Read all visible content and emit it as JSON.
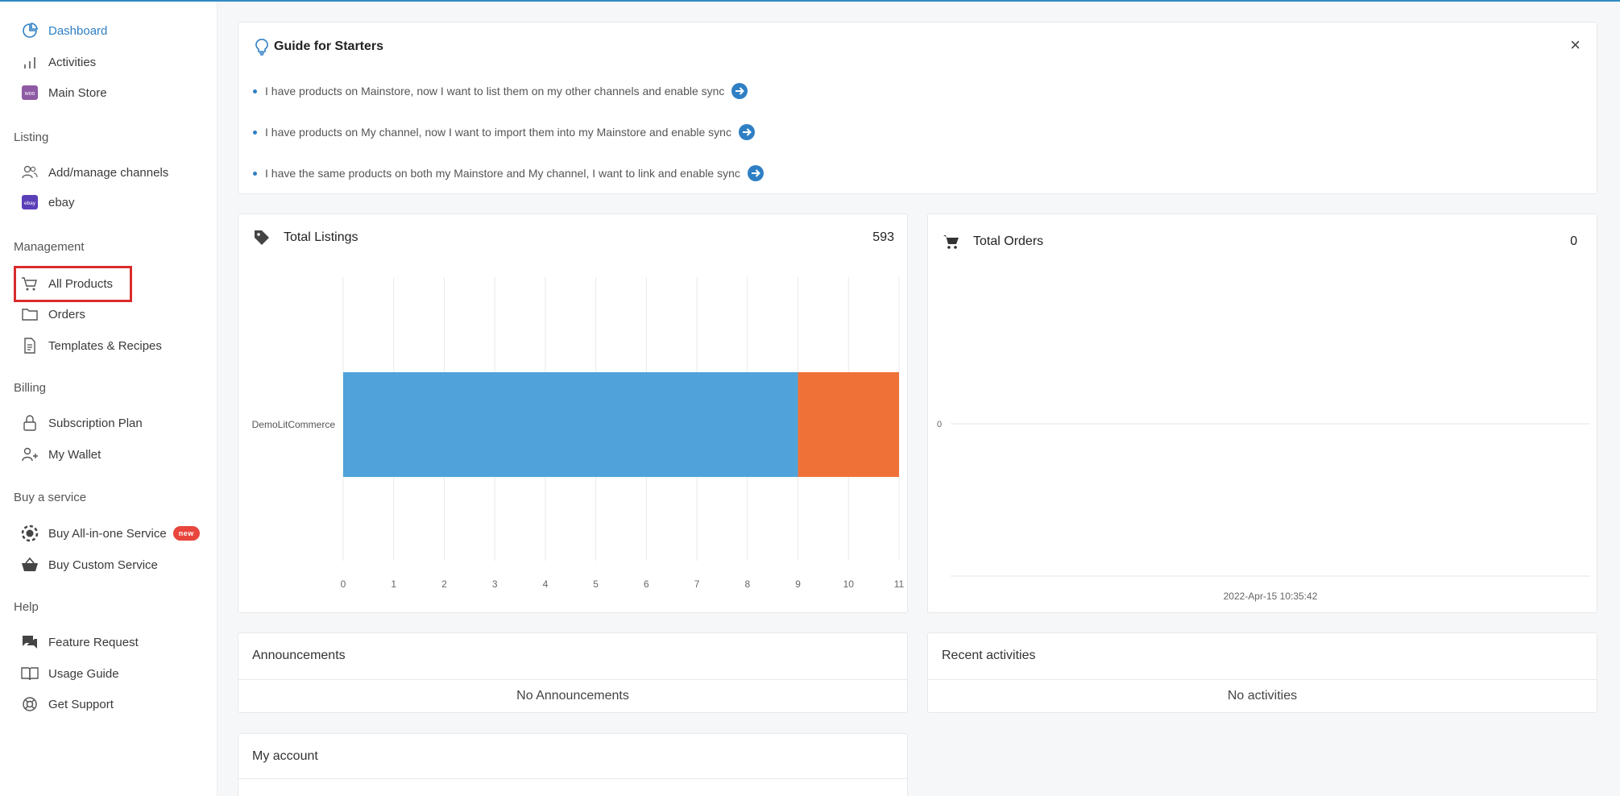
{
  "sidebar": {
    "items": [
      {
        "label": "Dashboard"
      },
      {
        "label": "Activities"
      },
      {
        "label": "Main Store"
      },
      {
        "label": "Add/manage channels"
      },
      {
        "label": "ebay"
      },
      {
        "label": "All Products"
      },
      {
        "label": "Orders"
      },
      {
        "label": "Templates & Recipes"
      },
      {
        "label": "Subscription Plan"
      },
      {
        "label": "My Wallet"
      },
      {
        "label": "Buy All-in-one Service"
      },
      {
        "label": "Buy Custom Service"
      },
      {
        "label": "Feature Request"
      },
      {
        "label": "Usage Guide"
      },
      {
        "label": "Get Support"
      }
    ],
    "headings": {
      "listing": "Listing",
      "management": "Management",
      "billing": "Billing",
      "buy_service": "Buy a service",
      "help": "Help"
    },
    "badges": {
      "new": "new",
      "ebay": "ebay",
      "woo": "woo"
    }
  },
  "guide": {
    "title": "Guide for Starters",
    "close": "×",
    "items": [
      "I have products on Mainstore, now I want to list them on my other channels and enable sync",
      "I have products on My channel, now I want to import them into my Mainstore and enable sync",
      "I have the same products on both my Mainstore and My channel, I want to link and enable sync"
    ]
  },
  "listings": {
    "title": "Total Listings",
    "count": "593"
  },
  "orders": {
    "title": "Total Orders",
    "count": "0"
  },
  "announcements": {
    "title": "Announcements",
    "empty": "No Announcements"
  },
  "recent": {
    "title": "Recent activities",
    "empty": "No activities"
  },
  "account": {
    "title": "My account"
  },
  "colors": {
    "accent": "#2f7fc4",
    "bar_blue": "#4fa3da",
    "bar_orange": "#f07138",
    "highlight": "#d92c2c"
  },
  "chart_data": [
    {
      "type": "bar",
      "orientation": "horizontal",
      "stacked": true,
      "categories": [
        "DemoLitCommerce"
      ],
      "series": [
        {
          "color": "#4fa3da",
          "values": [
            9
          ]
        },
        {
          "color": "#f07138",
          "values": [
            2
          ]
        }
      ],
      "xlim": [
        0,
        11
      ],
      "xticks": [
        "0",
        "1",
        "2",
        "3",
        "4",
        "5",
        "6",
        "7",
        "8",
        "9",
        "10",
        "11"
      ],
      "grid": true
    },
    {
      "type": "line",
      "x": [
        "2022-Apr-15 10:35:42"
      ],
      "series": [
        {
          "values": [
            0
          ]
        }
      ],
      "yticks": [
        "0"
      ]
    }
  ]
}
